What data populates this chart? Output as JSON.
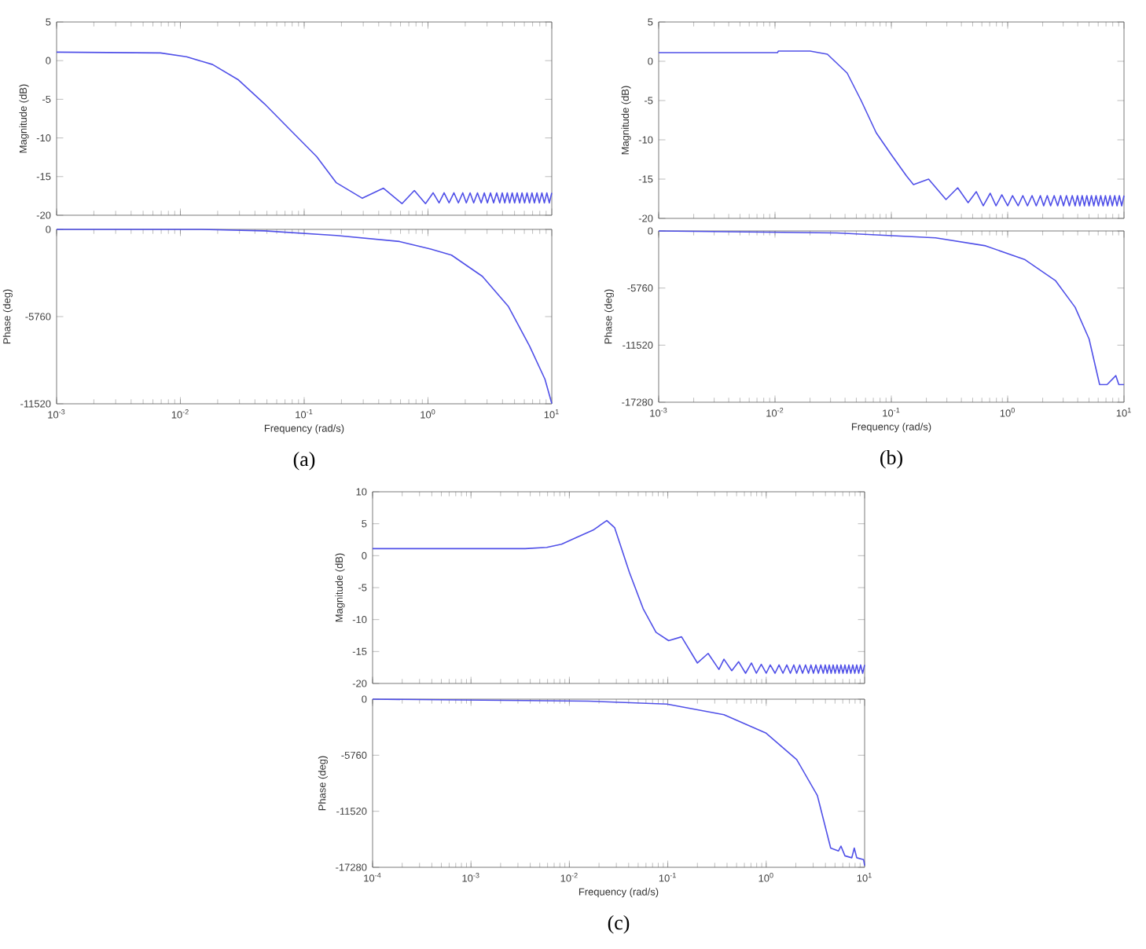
{
  "chart_data": [
    {
      "type": "line",
      "ylabel": "Magnitude (dB)",
      "log": "x",
      "tick_labels": "y",
      "xlim": [
        0.001,
        10
      ],
      "ylim": [
        -20,
        5
      ],
      "xticks": [
        {
          "value": 0.001,
          "label": null
        },
        {
          "value": 0.01,
          "label": null
        },
        {
          "value": 0.1,
          "label": null
        },
        {
          "value": 1,
          "label": null
        },
        {
          "value": 10,
          "label": null
        }
      ],
      "yticks": [
        -20,
        -15,
        -10,
        -5,
        0,
        5
      ],
      "series": [
        {
          "color": "#5050e8",
          "x": [
            0.001,
            0.0069,
            0.0112,
            0.0182,
            0.0295,
            0.0479,
            0.0776,
            0.126,
            0.182,
            0.295,
            0.437,
            0.617,
            0.776,
            0.955,
            1.1,
            1.23,
            1.35,
            1.48,
            1.62,
            1.76,
            1.91,
            2.04,
            2.19,
            2.34,
            2.51,
            2.69,
            2.85,
            3.02,
            3.2,
            3.39,
            3.59,
            3.8,
            3.98,
            4.17,
            4.37,
            4.57,
            4.79,
            5.01,
            5.25,
            5.5,
            5.75,
            6.03,
            6.31,
            6.61,
            6.92,
            7.24,
            7.59,
            7.94,
            8.32,
            8.71,
            9.12,
            9.55,
            10
          ],
          "values": [
            1.1,
            1.0,
            0.5,
            -0.5,
            -2.5,
            -5.6,
            -9.0,
            -12.4,
            -15.8,
            -17.8,
            -16.5,
            -18.5,
            -16.8,
            -18.5,
            -17.1,
            -18.4,
            -17.1,
            -18.4,
            -17.1,
            -18.4,
            -17.1,
            -18.4,
            -17.1,
            -18.4,
            -17.1,
            -18.4,
            -17.1,
            -18.4,
            -17.1,
            -18.4,
            -17.1,
            -18.4,
            -17.1,
            -18.4,
            -17.1,
            -18.4,
            -17.1,
            -18.4,
            -17.1,
            -18.4,
            -17.1,
            -18.4,
            -17.1,
            -18.4,
            -17.1,
            -18.4,
            -17.1,
            -18.4,
            -17.1,
            -18.4,
            -17.1,
            -18.4,
            -17.1
          ]
        }
      ]
    },
    {
      "type": "line",
      "ylabel": "Phase (deg)",
      "xlabel": "Frequency (rad/s)",
      "annotations": [
        "(a)"
      ],
      "log": "x",
      "xlim": [
        0.001,
        10
      ],
      "ylim": [
        -11520,
        0
      ],
      "xticks": [
        {
          "value": 0.001,
          "label": "10$^{-3}$"
        },
        {
          "value": 0.01,
          "label": "10$^{-2}$"
        },
        {
          "value": 0.1,
          "label": "10$^{-1}$"
        },
        {
          "value": 1,
          "label": "10$^{0}$"
        },
        {
          "value": 10,
          "label": "10$^{1}$"
        }
      ],
      "yticks": [
        -11520,
        -5760,
        0
      ],
      "series": [
        {
          "color": "#5050e8",
          "x": [
            0.001,
            0.0148,
            0.0479,
            0.182,
            0.589,
            1.05,
            1.55,
            2.75,
            4.47,
            6.61,
            8.81,
            10
          ],
          "values": [
            0,
            0,
            -100,
            -400,
            -800,
            -1300,
            -1700,
            -3100,
            -5100,
            -7700,
            -9900,
            -11500
          ]
        }
      ]
    },
    {
      "type": "line",
      "ylabel": "Magnitude (dB)",
      "log": "x",
      "tick_labels": "y",
      "xlim": [
        0.001,
        10
      ],
      "ylim": [
        -20,
        5
      ],
      "xticks": [
        {
          "value": 0.001,
          "label": null
        },
        {
          "value": 0.01,
          "label": null
        },
        {
          "value": 0.1,
          "label": null
        },
        {
          "value": 1,
          "label": null
        },
        {
          "value": 10,
          "label": null
        }
      ],
      "yticks": [
        -20,
        -15,
        -10,
        -5,
        0,
        5
      ],
      "series": [
        {
          "color": "#5050e8",
          "x": [
            0.001,
            0.0105,
            0.0107,
            0.02,
            0.0282,
            0.0417,
            0.055,
            0.0741,
            0.1,
            0.135,
            0.155,
            0.209,
            0.295,
            0.372,
            0.457,
            0.537,
            0.617,
            0.708,
            0.794,
            0.891,
            1.0,
            1.1,
            1.23,
            1.35,
            1.48,
            1.62,
            1.76,
            1.91,
            2.04,
            2.19,
            2.34,
            2.51,
            2.69,
            2.85,
            3.02,
            3.2,
            3.39,
            3.59,
            3.8,
            3.98,
            4.17,
            4.37,
            4.57,
            4.79,
            5.01,
            5.25,
            5.5,
            5.75,
            6.03,
            6.31,
            6.61,
            6.92,
            7.24,
            7.59,
            7.94,
            8.32,
            8.71,
            9.12,
            9.55,
            10
          ],
          "values": [
            1.1,
            1.1,
            1.3,
            1.3,
            0.9,
            -1.5,
            -5.0,
            -9.1,
            -11.9,
            -14.6,
            -15.7,
            -15.0,
            -17.6,
            -16.1,
            -18.0,
            -16.6,
            -18.4,
            -16.8,
            -18.4,
            -17.0,
            -18.4,
            -17.1,
            -18.4,
            -17.1,
            -18.4,
            -17.1,
            -18.4,
            -17.1,
            -18.4,
            -17.1,
            -18.4,
            -17.1,
            -18.4,
            -17.1,
            -18.4,
            -17.1,
            -18.4,
            -17.1,
            -18.4,
            -17.1,
            -18.4,
            -17.1,
            -18.4,
            -17.1,
            -18.4,
            -17.1,
            -18.4,
            -17.1,
            -18.4,
            -17.1,
            -18.4,
            -17.1,
            -18.4,
            -17.1,
            -18.4,
            -17.1,
            -18.4,
            -17.1,
            -18.4,
            -17.1
          ]
        }
      ]
    },
    {
      "type": "line",
      "ylabel": "Phase (deg)",
      "xlabel": "Frequency (rad/s)",
      "annotations": [
        "(b)"
      ],
      "log": "x",
      "xlim": [
        0.001,
        10
      ],
      "ylim": [
        -17280,
        0
      ],
      "xticks": [
        {
          "value": 0.001,
          "label": "10$^{-3}$"
        },
        {
          "value": 0.01,
          "label": "10$^{-2}$"
        },
        {
          "value": 0.1,
          "label": "10$^{-1}$"
        },
        {
          "value": 1,
          "label": "10$^{0}$"
        },
        {
          "value": 10,
          "label": "10$^{1}$"
        }
      ],
      "yticks": [
        -17280,
        -11520,
        -5760,
        0
      ],
      "series": [
        {
          "color": "#5050e8",
          "x": [
            0.001,
            0.0339,
            0.24,
            0.646,
            1.41,
            2.57,
            3.8,
            5.01,
            6.17,
            7.16,
            8.51,
            9.02,
            10
          ],
          "values": [
            0,
            -200,
            -700,
            -1500,
            -2900,
            -5000,
            -7700,
            -10900,
            -15500,
            -15500,
            -14600,
            -15500,
            -15500
          ]
        }
      ]
    },
    {
      "type": "line",
      "ylabel": "Magnitude (dB)",
      "log": "x",
      "tick_labels": "y",
      "xlim": [
        0.0001,
        10
      ],
      "ylim": [
        -20,
        10
      ],
      "xticks": [
        {
          "value": 0.0001,
          "label": null
        },
        {
          "value": 0.001,
          "label": null
        },
        {
          "value": 0.01,
          "label": null
        },
        {
          "value": 0.1,
          "label": null
        },
        {
          "value": 1,
          "label": null
        },
        {
          "value": 10,
          "label": null
        }
      ],
      "yticks": [
        -20,
        -15,
        -10,
        -5,
        0,
        5,
        10
      ],
      "series": [
        {
          "color": "#5050e8",
          "x": [
            0.0001,
            0.00355,
            0.00589,
            0.00832,
            0.012,
            0.0174,
            0.024,
            0.0288,
            0.0407,
            0.0562,
            0.0759,
            0.102,
            0.138,
            0.2,
            0.257,
            0.331,
            0.372,
            0.447,
            0.525,
            0.617,
            0.708,
            0.794,
            0.891,
            1.0,
            1.1,
            1.23,
            1.35,
            1.48,
            1.62,
            1.76,
            1.91,
            2.04,
            2.19,
            2.34,
            2.51,
            2.69,
            2.85,
            3.02,
            3.2,
            3.39,
            3.59,
            3.8,
            3.98,
            4.17,
            4.37,
            4.57,
            4.79,
            5.01,
            5.25,
            5.5,
            5.75,
            6.03,
            6.31,
            6.61,
            6.92,
            7.24,
            7.59,
            7.94,
            8.32,
            8.71,
            9.12,
            9.55,
            10
          ],
          "values": [
            1.1,
            1.1,
            1.3,
            1.8,
            2.9,
            4.0,
            5.5,
            4.4,
            -2.6,
            -8.3,
            -12.0,
            -13.3,
            -12.7,
            -16.8,
            -15.3,
            -17.8,
            -16.2,
            -18.0,
            -16.6,
            -18.4,
            -16.8,
            -18.4,
            -17.0,
            -18.4,
            -17.1,
            -18.4,
            -17.1,
            -18.4,
            -17.1,
            -18.4,
            -17.1,
            -18.4,
            -17.1,
            -18.4,
            -17.1,
            -18.4,
            -17.1,
            -18.4,
            -17.1,
            -18.4,
            -17.1,
            -18.4,
            -17.1,
            -18.4,
            -17.1,
            -18.4,
            -17.1,
            -18.4,
            -17.1,
            -18.4,
            -17.1,
            -18.4,
            -17.1,
            -18.4,
            -17.1,
            -18.4,
            -17.1,
            -18.4,
            -17.1,
            -18.4,
            -17.1,
            -18.4,
            -17.1
          ]
        }
      ]
    },
    {
      "type": "line",
      "ylabel": "Phase (deg)",
      "xlabel": "Frequency (rad/s)",
      "annotations": [
        "(c)"
      ],
      "log": "x",
      "xlim": [
        0.0001,
        10
      ],
      "ylim": [
        -17280,
        0
      ],
      "xticks": [
        {
          "value": 0.0001,
          "label": "10$^{-4}$"
        },
        {
          "value": 0.001,
          "label": "10$^{-3}$"
        },
        {
          "value": 0.01,
          "label": "10$^{-2}$"
        },
        {
          "value": 0.1,
          "label": "10$^{-1}$"
        },
        {
          "value": 1,
          "label": "10$^{0}$"
        },
        {
          "value": 10,
          "label": "10$^{1}$"
        }
      ],
      "yticks": [
        -17280,
        -11520,
        -5760,
        0
      ],
      "series": [
        {
          "color": "#5050e8",
          "x": [
            0.0001,
            0.0155,
            0.098,
            0.372,
            1.0,
            2.04,
            3.31,
            4.52,
            5.43,
            5.75,
            6.31,
            7.41,
            7.85,
            8.32,
            9.77,
            10
          ],
          "values": [
            0,
            -200,
            -500,
            -1600,
            -3500,
            -6200,
            -9900,
            -15300,
            -15600,
            -15100,
            -16100,
            -16300,
            -15300,
            -16300,
            -16500,
            -17100
          ]
        }
      ]
    }
  ]
}
